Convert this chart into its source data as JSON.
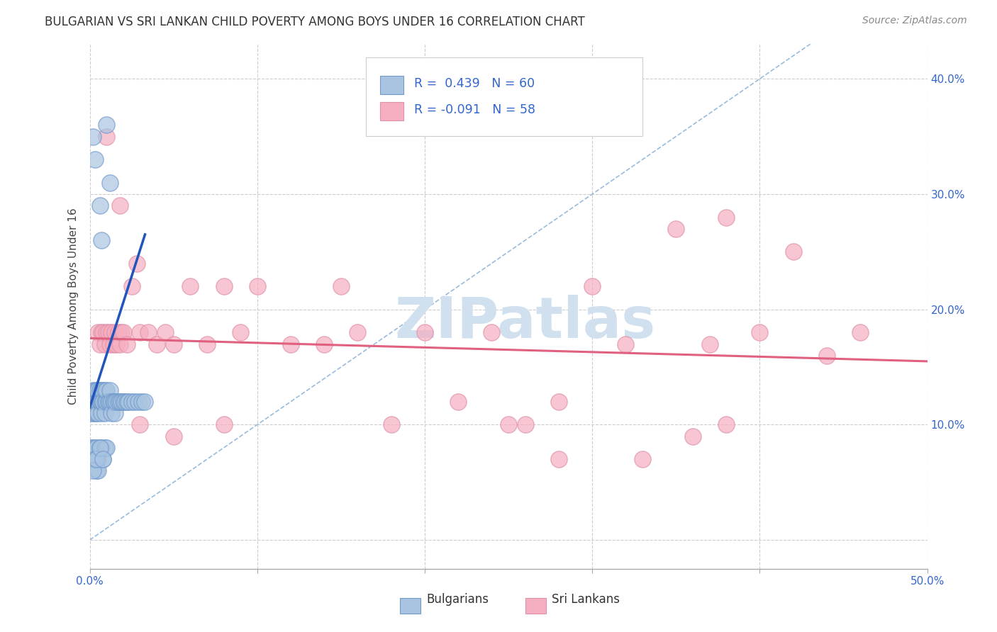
{
  "title": "BULGARIAN VS SRI LANKAN CHILD POVERTY AMONG BOYS UNDER 16 CORRELATION CHART",
  "source": "Source: ZipAtlas.com",
  "ylabel": "Child Poverty Among Boys Under 16",
  "xlim": [
    0.0,
    0.5
  ],
  "ylim": [
    -0.025,
    0.43
  ],
  "xticks": [
    0.0,
    0.1,
    0.2,
    0.3,
    0.4,
    0.5
  ],
  "yticks": [
    0.0,
    0.1,
    0.2,
    0.3,
    0.4
  ],
  "xtick_labels_left": "0.0%",
  "xtick_labels_right": "50.0%",
  "ytick_labels": [
    "",
    "10.0%",
    "20.0%",
    "30.0%",
    "40.0%"
  ],
  "legend_r_bulgarian": " 0.439",
  "legend_n_bulgarian": "60",
  "legend_r_srilankan": "-0.091",
  "legend_n_srilankan": "58",
  "bulgarian_color": "#a8c4e0",
  "srilankan_color": "#f5afc0",
  "bulgarian_line_color": "#2255bb",
  "srilankan_line_color": "#e06080",
  "diag_line_color": "#99bbdd",
  "watermark_text": "ZIPatlas",
  "watermark_color": "#d0e0ee",
  "bg_color": "#ffffff",
  "grid_color": "#cccccc",
  "title_color": "#333333",
  "axis_label_color": "#444444",
  "tick_label_color": "#3366cc",
  "legend_box_color": "#eeeeee",
  "legend_text_color": "#3366cc"
}
